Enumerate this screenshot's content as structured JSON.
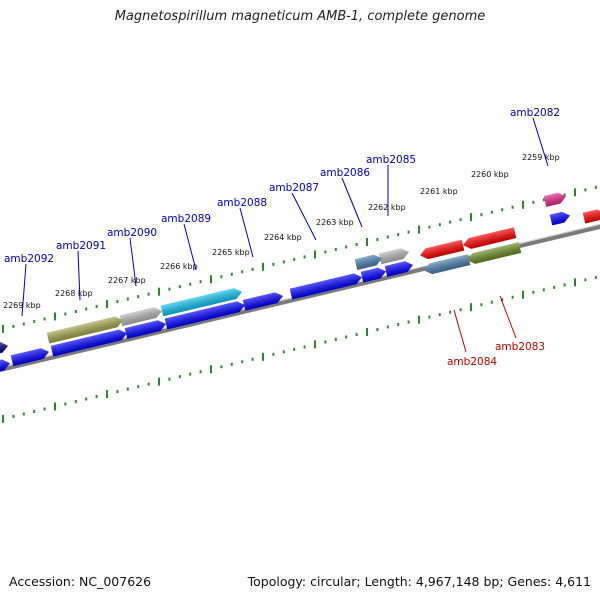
{
  "title": "Magnetospirillum magneticum AMB-1, complete genome",
  "footer": {
    "accession": "Accession: NC_007626",
    "topology": "Topology: circular; Length: 4,967,148 bp; Genes: 4,611"
  },
  "colors": {
    "backbone": "#7a7a7a",
    "ruler": "#2a8a2a",
    "forward_label": "#0000c0",
    "reverse_label": "#c00000"
  },
  "ruler_labels": [
    {
      "text": "2259 kbp",
      "kbp": 2259
    },
    {
      "text": "2260 kbp",
      "kbp": 2260
    },
    {
      "text": "2261 kbp",
      "kbp": 2261
    },
    {
      "text": "2262 kbp",
      "kbp": 2262
    },
    {
      "text": "2263 kbp",
      "kbp": 2263
    },
    {
      "text": "2264 kbp",
      "kbp": 2264
    },
    {
      "text": "2265 kbp",
      "kbp": 2265
    },
    {
      "text": "2266 kbp",
      "kbp": 2266
    },
    {
      "text": "2267 kbp",
      "kbp": 2267
    },
    {
      "text": "2268 kbp",
      "kbp": 2268
    },
    {
      "text": "2269 kbp",
      "kbp": 2269
    }
  ],
  "gene_labels": [
    {
      "text": "amb2082",
      "strand": "forward"
    },
    {
      "text": "amb2085",
      "strand": "forward"
    },
    {
      "text": "amb2086",
      "strand": "forward"
    },
    {
      "text": "amb2087",
      "strand": "forward"
    },
    {
      "text": "amb2088",
      "strand": "forward"
    },
    {
      "text": "amb2089",
      "strand": "forward"
    },
    {
      "text": "amb2090",
      "strand": "forward"
    },
    {
      "text": "amb2091",
      "strand": "forward"
    },
    {
      "text": "amb2092",
      "strand": "forward"
    },
    {
      "text": "amb2084",
      "strand": "reverse"
    },
    {
      "text": "amb2083",
      "strand": "reverse"
    }
  ]
}
